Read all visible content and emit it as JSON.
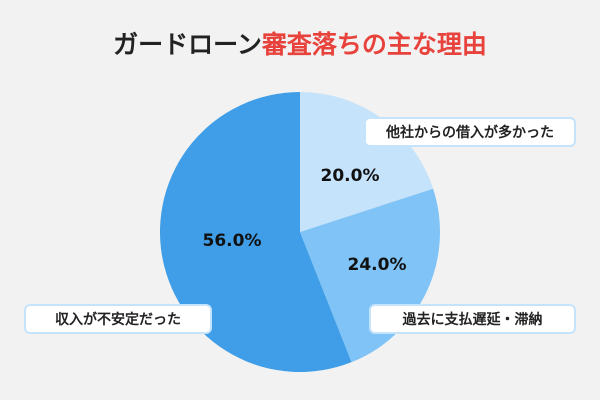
{
  "chart_data": {
    "type": "pie",
    "title": [
      "ガードローン",
      "審査落ちの主な理由"
    ],
    "title_colors": [
      "#222222",
      "#e8423c"
    ],
    "categories": [
      "他社からの借入が多かった",
      "過去に支払遅延・滞納",
      "収入が不安定だった"
    ],
    "values": [
      20,
      24,
      56
    ],
    "value_labels": [
      "20.0%",
      "24.0%",
      "56.0%"
    ],
    "colors": [
      "#c5e3fb",
      "#80c4f7",
      "#3f9ee7"
    ]
  }
}
